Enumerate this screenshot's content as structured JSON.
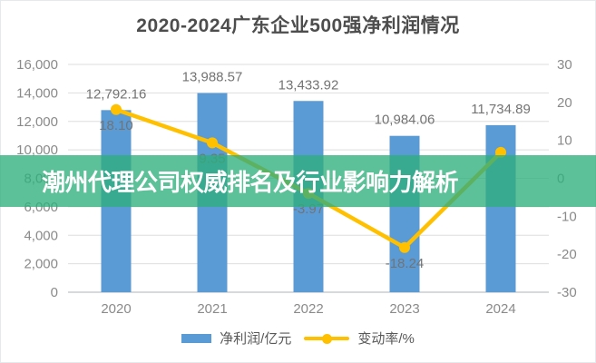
{
  "title": "2020-2024广东企业500强净利润情况",
  "banner": {
    "text": "潮州代理公司权威排名及行业影响力解析",
    "bg_color": "#2EAE7B",
    "bg_opacity": 0.78,
    "text_color": "#ffffff"
  },
  "legend": {
    "items": [
      {
        "label": "净利润/亿元",
        "type": "bar",
        "color": "#5B9BD5"
      },
      {
        "label": "变动率/%",
        "type": "line",
        "color": "#FFC000"
      }
    ]
  },
  "axes": {
    "left_ticks": [
      "16,000",
      "14,000",
      "12,000",
      "10,000",
      "8,000",
      "6,000",
      "4,000",
      "2,000",
      "0"
    ],
    "right_ticks": [
      "30",
      "20",
      "10",
      "0",
      "-10",
      "-20",
      "-30"
    ]
  },
  "chart_data": {
    "type": "bar+line combo",
    "title": "2020-2024广东企业500强净利润情况",
    "categories": [
      "2020",
      "2021",
      "2022",
      "2023",
      "2024"
    ],
    "series": [
      {
        "name": "净利润/亿元",
        "type": "bar",
        "axis": "left",
        "color": "#5B9BD5",
        "values": [
          12792.16,
          13988.57,
          13433.92,
          10984.06,
          11734.89
        ],
        "labels": [
          "12,792.16",
          "13,988.57",
          "13,433.92",
          "10,984.06",
          "11,734.89"
        ]
      },
      {
        "name": "变动率/%",
        "type": "line",
        "axis": "right",
        "color": "#FFC000",
        "values": [
          18.1,
          9.35,
          -3.97,
          -18.24,
          6.84
        ],
        "labels": [
          "18.10",
          "9.35",
          "-3.97",
          "-18.24",
          ""
        ]
      }
    ],
    "left_ylim": [
      0,
      16000
    ],
    "right_ylim": [
      -30,
      30
    ],
    "grid": true,
    "legend_position": "bottom"
  },
  "colors": {
    "grid": "#dedede",
    "axis_line": "#c9cdd1",
    "tick_label": "#8a8a8a",
    "data_label": "#737373",
    "title": "#4d4d4d"
  }
}
